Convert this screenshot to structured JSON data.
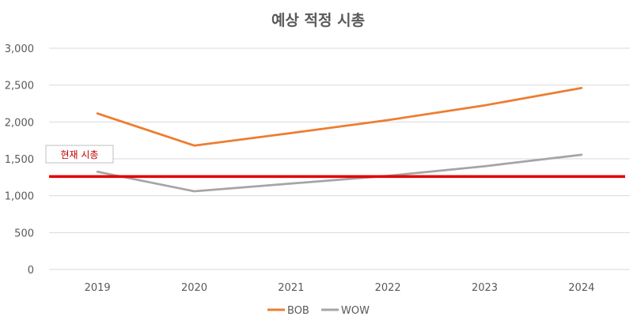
{
  "chart_data": {
    "type": "line",
    "title": "예상 적정 시총",
    "categories": [
      "2019",
      "2020",
      "2021",
      "2022",
      "2023",
      "2024"
    ],
    "series": [
      {
        "name": "BOB",
        "values": [
          2115,
          1680,
          1850,
          2025,
          2225,
          2460
        ]
      },
      {
        "name": "WOW",
        "values": [
          1325,
          1060,
          1165,
          1270,
          1400,
          1555
        ]
      }
    ],
    "y_tick_labels": [
      "0",
      "500",
      "1,000",
      "1,500",
      "2,000",
      "2,500",
      "3,000"
    ],
    "ylim": [
      0,
      3000
    ],
    "reference_line": {
      "label": "현재 시총",
      "value": 1260
    },
    "legend_position": "bottom",
    "grid": true,
    "colors": {
      "BOB": "#ed7d31",
      "WOW": "#a5a5a5",
      "reference": "#e00000",
      "grid": "#d9d9d9",
      "text": "#595959"
    }
  }
}
